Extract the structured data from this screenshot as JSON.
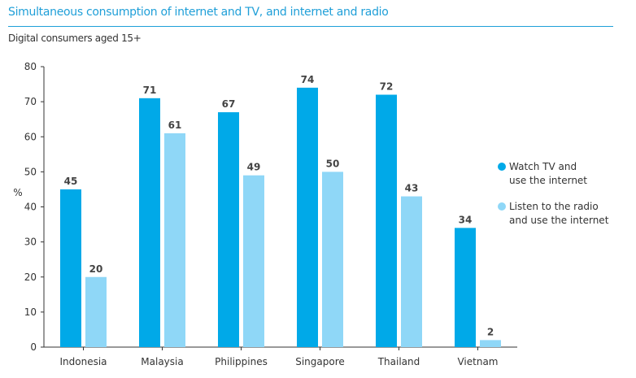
{
  "chart_data": {
    "type": "bar",
    "title": "Simultaneous consumption of internet and TV, and internet and radio",
    "subtitle": "Digital consumers aged 15+",
    "xlabel": "",
    "ylabel": "%",
    "ylim": [
      0,
      80
    ],
    "yticks": [
      "0",
      "10",
      "20",
      "30",
      "40",
      "50",
      "60",
      "70",
      "80"
    ],
    "categories": [
      "Indonesia",
      "Malaysia",
      "Philippines",
      "Singapore",
      "Thailand",
      "Vietnam"
    ],
    "series": [
      {
        "name": "Watch TV and use the internet",
        "name_lines": [
          "Watch TV and",
          "use the internet"
        ],
        "color": "#00a9e8",
        "values": [
          45,
          71,
          67,
          74,
          72,
          34
        ]
      },
      {
        "name": "Listen to the radio and use the internet",
        "name_lines": [
          "Listen to the radio",
          "and use the internet"
        ],
        "color": "#8fd7f7",
        "values": [
          20,
          61,
          49,
          50,
          43,
          2
        ]
      }
    ],
    "legend_position": "right",
    "grid": false
  }
}
